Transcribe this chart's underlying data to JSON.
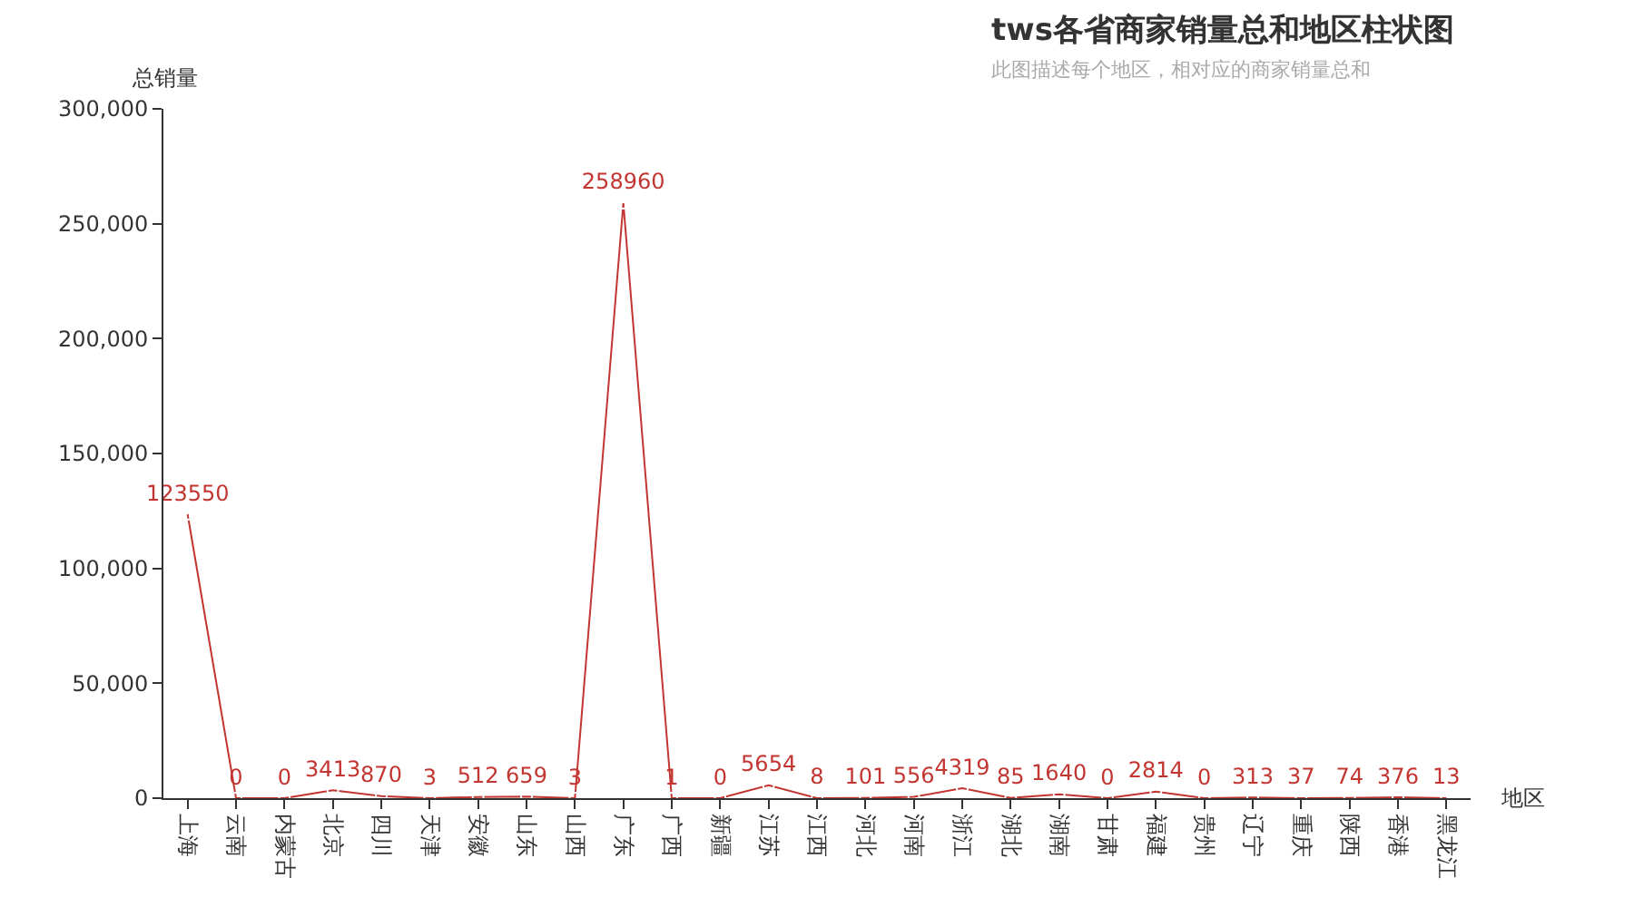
{
  "chart_data": {
    "type": "line",
    "title": "tws各省商家销量总和地区柱状图",
    "subtitle": "此图描述每个地区，相对应的商家销量总和",
    "xlabel": "地区",
    "ylabel": "总销量",
    "categories": [
      "上海",
      "云南",
      "内蒙古",
      "北京",
      "四川",
      "天津",
      "安徽",
      "山东",
      "山西",
      "广东",
      "广西",
      "新疆",
      "江苏",
      "江西",
      "河北",
      "河南",
      "浙江",
      "湖北",
      "湖南",
      "甘肃",
      "福建",
      "贵州",
      "辽宁",
      "重庆",
      "陕西",
      "香港",
      "黑龙江"
    ],
    "series": [
      {
        "color": "#c23531",
        "values": [
          123550,
          0,
          0,
          3413,
          870,
          3,
          512,
          659,
          3,
          258960,
          1,
          0,
          5654,
          8,
          101,
          556,
          4319,
          85,
          1640,
          0,
          2814,
          0,
          313,
          37,
          74,
          376,
          13
        ]
      }
    ],
    "ylim": [
      0,
      300000
    ],
    "yticks": [
      {
        "value": 0,
        "label": "0"
      },
      {
        "value": 50000,
        "label": "50,000"
      },
      {
        "value": 100000,
        "label": "100,000"
      },
      {
        "value": 150000,
        "label": "150,000"
      },
      {
        "value": 200000,
        "label": "200,000"
      },
      {
        "value": 250000,
        "label": "250,000"
      },
      {
        "value": 300000,
        "label": "300,000"
      }
    ],
    "data_labels": true,
    "marker": "circle",
    "legend": false
  }
}
